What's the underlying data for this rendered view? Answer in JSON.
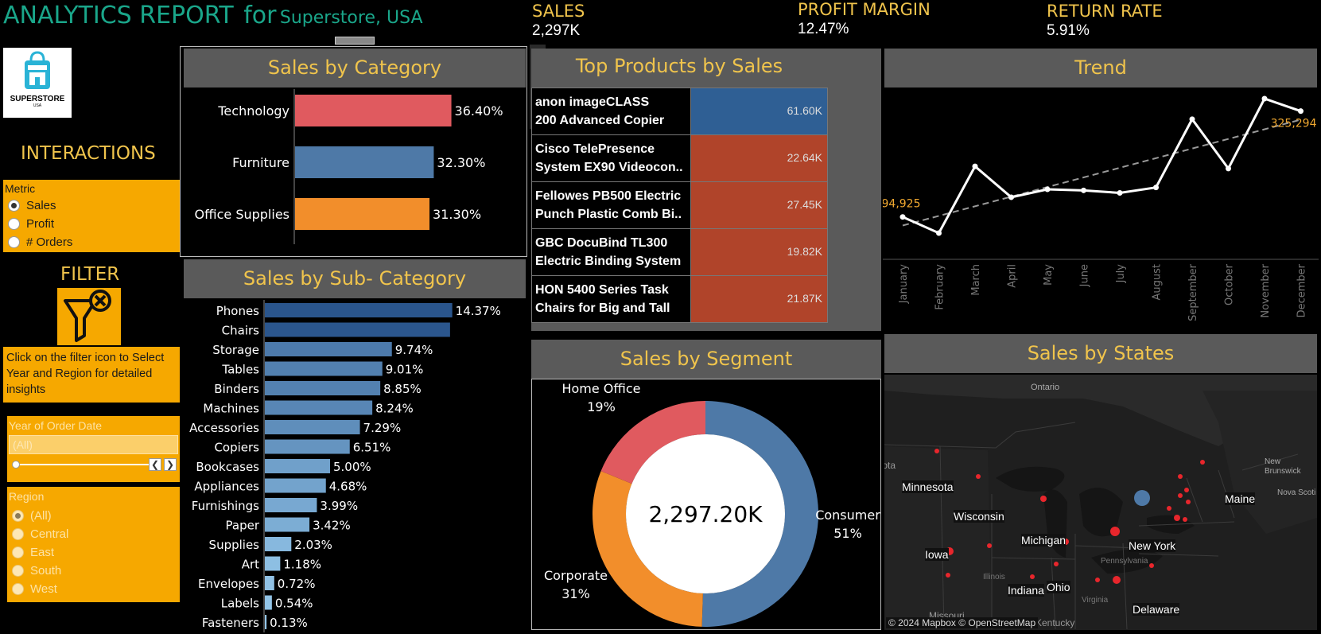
{
  "header": {
    "title": "ANALYTICS REPORT",
    "for": "for",
    "store": "Superstore, USA",
    "logo_text": "SUPERSTORE",
    "logo_sub": "USA"
  },
  "kpis": [
    {
      "label": "SALES",
      "value": "2,297K"
    },
    {
      "label": "PROFIT MARGIN",
      "value": "12.47%"
    },
    {
      "label": "RETURN RATE",
      "value": "5.91%"
    }
  ],
  "interactions": {
    "title": "INTERACTIONS",
    "metric_label": "Metric",
    "options": [
      "Sales",
      "Profit",
      "# Orders"
    ],
    "selected": "Sales"
  },
  "filter": {
    "title": "FILTER",
    "help_text": "Click on the filter icon to Select Year and Region for detailed insights",
    "year_label": "Year of Order Date",
    "year_value": "(All)",
    "region_label": "Region",
    "region_options": [
      "(All)",
      "Central",
      "East",
      "South",
      "West"
    ],
    "region_selected": "(All)"
  },
  "category_chart": {
    "title": "Sales by Category",
    "chart_data": {
      "type": "bar",
      "categories": [
        "Technology",
        "Furniture",
        "Office Supplies"
      ],
      "values": [
        36.4,
        32.3,
        31.3
      ],
      "labels": [
        "36.40%",
        "32.30%",
        "31.30%"
      ],
      "colors": [
        "#e05a5f",
        "#4e79a7",
        "#f28e2b"
      ]
    }
  },
  "subcategory_chart": {
    "title": "Sales by Sub- Category",
    "chart_data": {
      "type": "bar",
      "categories": [
        "Phones",
        "Chairs",
        "Storage",
        "Tables",
        "Binders",
        "Machines",
        "Accessories",
        "Copiers",
        "Bookcases",
        "Appliances",
        "Furnishings",
        "Paper",
        "Supplies",
        "Art",
        "Envelopes",
        "Labels",
        "Fasteners"
      ],
      "values": [
        14.37,
        14.2,
        9.74,
        9.01,
        8.85,
        8.24,
        7.29,
        6.51,
        5.0,
        4.68,
        3.99,
        3.42,
        2.03,
        1.18,
        0.72,
        0.54,
        0.13
      ],
      "labels": [
        "14.37%",
        "",
        "9.74%",
        "9.01%",
        "8.85%",
        "8.24%",
        "7.29%",
        "6.51%",
        "5.00%",
        "4.68%",
        "3.99%",
        "3.42%",
        "2.03%",
        "1.18%",
        "0.72%",
        "0.54%",
        "0.13%"
      ]
    }
  },
  "top_products": {
    "title": "Top Products by Sales",
    "rows": [
      {
        "name1": "anon imageCLASS",
        "name2": "200 Advanced Copier",
        "value": "61.60K",
        "color": "#2f5f94"
      },
      {
        "name1": "Cisco TelePresence",
        "name2": "System EX90 Videocon..",
        "value": "22.64K",
        "color": "#b0442a"
      },
      {
        "name1": "Fellowes PB500 Electric",
        "name2": "Punch Plastic Comb Bi..",
        "value": "27.45K",
        "color": "#b0442a"
      },
      {
        "name1": "GBC DocuBind TL300",
        "name2": "Electric Binding System",
        "value": "19.82K",
        "color": "#b0442a"
      },
      {
        "name1": "HON 5400 Series Task",
        "name2": "Chairs for Big and Tall",
        "value": "21.87K",
        "color": "#b0442a"
      }
    ]
  },
  "trend": {
    "title": "Trend",
    "chart_data": {
      "type": "line",
      "categories": [
        "January",
        "February",
        "March",
        "April",
        "May",
        "June",
        "July",
        "August",
        "September",
        "October",
        "November",
        "December"
      ],
      "values": [
        94925,
        59751,
        205005,
        137762,
        155029,
        152718,
        147239,
        159044,
        307650,
        200323,
        352461,
        325294
      ],
      "first_label": "94,925",
      "last_label": "325,294",
      "trend_line": true
    }
  },
  "segment": {
    "title": "Sales by Segment",
    "center": "2,297.20K",
    "chart_data": {
      "type": "pie",
      "categories": [
        "Consumer",
        "Corporate",
        "Home Office"
      ],
      "values": [
        51,
        31,
        19
      ],
      "labels": [
        "51%",
        "31%",
        "19%"
      ],
      "colors": [
        "#4e79a7",
        "#f28e2b",
        "#e05a5f"
      ]
    }
  },
  "states": {
    "title": "Sales by States",
    "attribution": "© 2024 Mapbox © OpenStreetMap",
    "labels": [
      "Ontario",
      "Minnesota",
      "Wisconsin",
      "Michigan",
      "Iowa",
      "Indiana",
      "Ohio",
      "New York",
      "Maine",
      "Delaware",
      "New Brunswick",
      "Nova Scoti",
      "Pennsylvania",
      "Illinois",
      "Missouri",
      "Virginia",
      "Kentucky",
      "Dakota"
    ]
  }
}
